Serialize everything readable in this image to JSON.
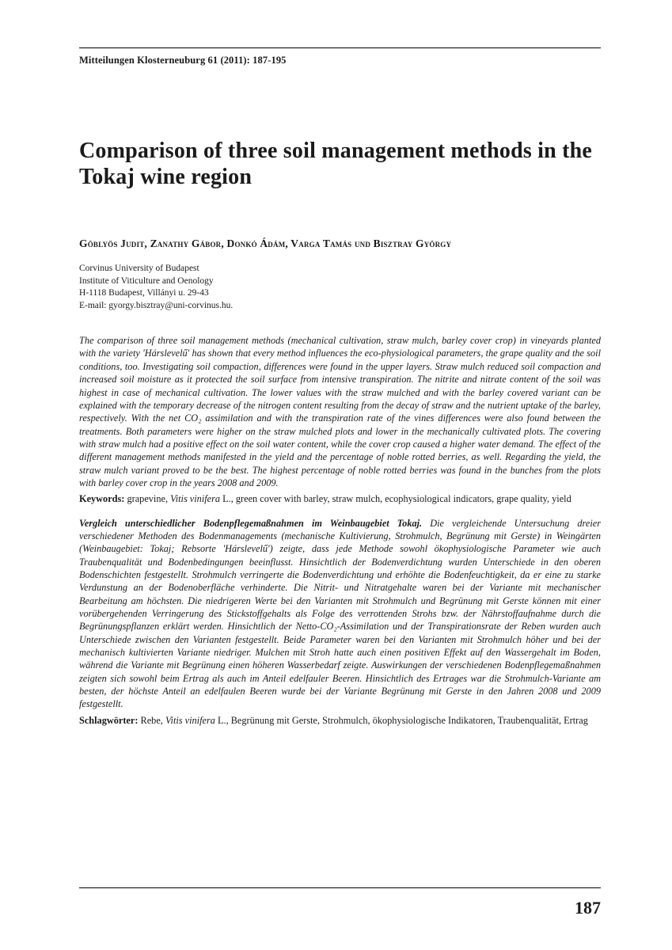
{
  "running_head": "Mitteilungen Klosterneuburg 61 (2011): 187-195",
  "title": "Comparison of three soil management methods in the Tokaj wine region",
  "authors": "Göblyös Judit, Zanathy Gábor, Donkó Ádám, Varga Tamás und Bisztray György",
  "affiliation": {
    "line1": "Corvinus University of Budapest",
    "line2": "Institute of Viticulture and Oenology",
    "line3": "H-1118 Budapest, Villányi u. 29-43",
    "line4": "E-mail: gyorgy.bisztray@uni-corvinus.hu."
  },
  "abstract_en": "The comparison of three soil management methods (mechanical cultivation, straw mulch, barley cover crop) in vineyards planted with the variety 'Hárslevelű' has shown that every method influences the eco-physiological parameters, the grape quality and the soil conditions, too. Investigating soil compaction, differences were found in the upper layers. Straw mulch reduced soil compaction and increased soil moisture as it protected the soil surface from intensive transpiration. The nitrite and nitrate content of the soil was highest in case of mechanical cultivation. The lower values with the straw mulched and with the barley covered variant can be explained with the temporary decrease of the nitrogen content resulting from the decay of straw and the nutrient uptake of the barley, respectively. With the net CO₂ assimilation and with the transpiration rate of the vines differences were also found between the treatments. Both parameters were higher on the straw mulched plots and lower in the mechanically cultivated plots. The covering with straw mulch had a positive effect on the soil water content, while the cover crop caused a higher water demand. The effect of the different management methods manifested in the yield and the percentage of noble rotted berries, as well. Regarding the yield, the straw mulch variant proved to be the best. The highest percentage of noble rotted berries was found in the bunches from the plots with barley cover crop in the years 2008 and 2009.",
  "keywords_en_label": "Keywords:",
  "keywords_en_pre": " grapevine, ",
  "keywords_en_latin": "Vitis vinifera",
  "keywords_en_post": " L., green cover with barley, straw mulch, ecophysiological indicators, grape quality, yield",
  "abstract_de_title": "Vergleich unterschiedlicher Bodenpflegemaßnahmen im Weinbaugebiet Tokaj.",
  "abstract_de": " Die vergleichende Untersuchung dreier verschiedener Methoden des Bodenmanagements (mechanische Kultivierung, Strohmulch, Begrünung mit Gerste) in Weingärten (Weinbaugebiet: Tokaj; Rebsorte 'Hárslevelű') zeigte, dass jede Methode sowohl ökophysiologische Parameter wie auch Traubenqualität und Bodenbedingungen beeinflusst. Hinsichtlich der Bodenverdichtung wurden Unterschiede in den oberen Bodenschichten festgestellt. Strohmulch verringerte die Bodenverdichtung und erhöhte die Bodenfeuchtigkeit, da er eine zu starke Verdunstung an der Bodenoberfläche verhinderte. Die Nitrit- und Nitratgehalte waren bei der Variante mit mechanischer Bearbeitung am höchsten. Die niedrigeren Werte bei den Varianten mit Strohmulch und Begrünung mit Gerste können mit einer vorübergehenden Verringerung des Stickstoffgehalts als Folge des verrottenden Strohs bzw. der Nährstoffaufnahme durch die Begrünungspflanzen erklärt werden. Hinsichtlich der Netto-CO₂-Assimilation und der Transpirationsrate der Reben wurden auch Unterschiede zwischen den Varianten festgestellt. Beide Parameter waren bei den Varianten mit Strohmulch höher und bei der mechanisch kultivierten Variante niedriger. Mulchen mit Stroh hatte auch einen positiven Effekt auf den Wassergehalt im Boden, während die Variante mit Begrünung einen höheren Wasserbedarf zeigte. Auswirkungen der verschiedenen Bodenpflegemaßnahmen zeigten sich sowohl beim Ertrag als auch im Anteil edelfauler Beeren. Hinsichtlich des Ertrages war die Strohmulch-Variante am besten, der höchste Anteil an edelfaulen Beeren wurde bei der Variante Begrünung mit Gerste in den Jahren 2008 und 2009 festgestellt.",
  "keywords_de_label": "Schlagwörter:",
  "keywords_de_pre": " Rebe, ",
  "keywords_de_latin": "Vitis vinifera",
  "keywords_de_post": " L., Begrünung mit Gerste, Strohmulch, ökophysiologische Indikatoren, Traubenqualität, Ertrag",
  "page_number": "187"
}
